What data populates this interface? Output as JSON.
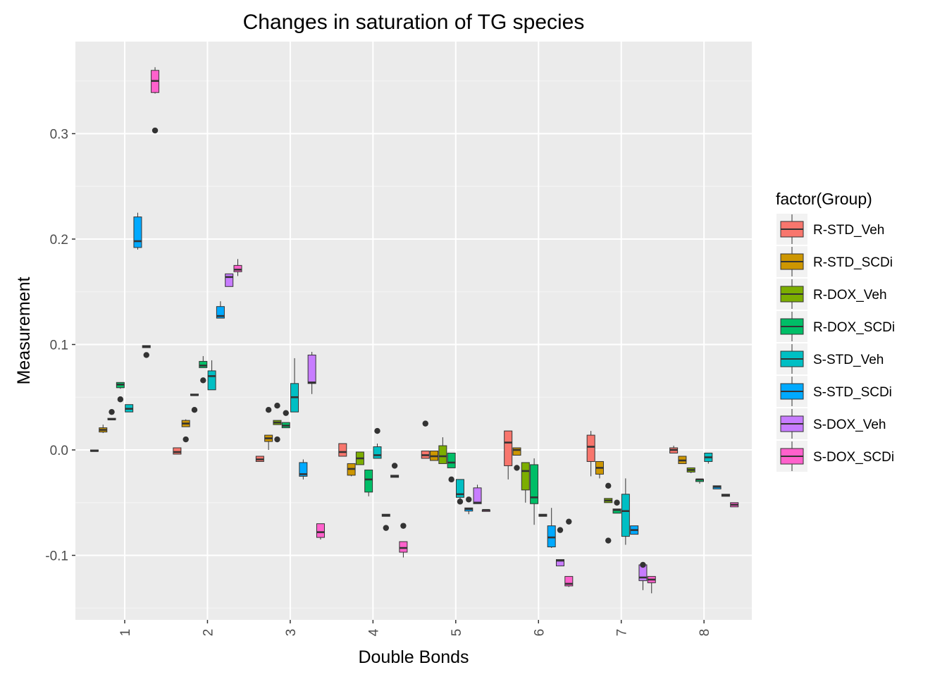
{
  "chart_data": {
    "type": "boxplot",
    "title": "Changes in saturation of TG species",
    "xlabel": "Double Bonds",
    "ylabel": "Measurement",
    "categories": [
      "1",
      "2",
      "3",
      "4",
      "5",
      "6",
      "7",
      "8"
    ],
    "yticks": [
      -0.1,
      0.0,
      0.1,
      0.2,
      0.3
    ],
    "ytick_labels": [
      "-0.1",
      "0.0",
      "0.1",
      "0.2",
      "0.3"
    ],
    "ylim": [
      -0.16,
      0.385
    ],
    "legend_title": "factor(Group)",
    "legend_position": "right",
    "grid": true,
    "series": [
      {
        "name": "R-STD_Veh",
        "color": "#F8766D",
        "boxes": [
          {
            "lo": -0.001,
            "q1": -0.001,
            "med": -0.001,
            "q3": 0.0,
            "hi": 0.0,
            "outliers": []
          },
          {
            "lo": -0.004,
            "q1": -0.004,
            "med": -0.002,
            "q3": 0.002,
            "hi": 0.002,
            "outliers": []
          },
          {
            "lo": -0.011,
            "q1": -0.011,
            "med": -0.009,
            "q3": -0.006,
            "hi": -0.006,
            "outliers": []
          },
          {
            "lo": -0.006,
            "q1": -0.006,
            "med": -0.002,
            "q3": 0.006,
            "hi": 0.006,
            "outliers": []
          },
          {
            "lo": -0.008,
            "q1": -0.008,
            "med": -0.005,
            "q3": -0.001,
            "hi": -0.001,
            "outliers": [
              0.025
            ]
          },
          {
            "lo": -0.028,
            "q1": -0.015,
            "med": 0.007,
            "q3": 0.018,
            "hi": 0.018,
            "outliers": []
          },
          {
            "lo": -0.025,
            "q1": -0.011,
            "med": 0.003,
            "q3": 0.014,
            "hi": 0.018,
            "outliers": []
          },
          {
            "lo": -0.003,
            "q1": -0.003,
            "med": 0.0,
            "q3": 0.002,
            "hi": 0.004,
            "outliers": []
          }
        ]
      },
      {
        "name": "R-STD_SCDi",
        "color": "#CD9600",
        "boxes": [
          {
            "lo": 0.016,
            "q1": 0.017,
            "med": 0.019,
            "q3": 0.021,
            "hi": 0.024,
            "outliers": []
          },
          {
            "lo": 0.022,
            "q1": 0.022,
            "med": 0.025,
            "q3": 0.028,
            "hi": 0.029,
            "outliers": [
              0.01
            ]
          },
          {
            "lo": 0.0,
            "q1": 0.008,
            "med": 0.011,
            "q3": 0.014,
            "hi": 0.014,
            "outliers": [
              0.038
            ]
          },
          {
            "lo": -0.025,
            "q1": -0.024,
            "med": -0.018,
            "q3": -0.013,
            "hi": -0.013,
            "outliers": []
          },
          {
            "lo": -0.01,
            "q1": -0.01,
            "med": -0.006,
            "q3": -0.001,
            "hi": -0.001,
            "outliers": []
          },
          {
            "lo": -0.005,
            "q1": -0.005,
            "med": 0.0,
            "q3": 0.002,
            "hi": 0.002,
            "outliers": [
              -0.017
            ]
          },
          {
            "lo": -0.027,
            "q1": -0.023,
            "med": -0.017,
            "q3": -0.011,
            "hi": -0.011,
            "outliers": []
          },
          {
            "lo": -0.013,
            "q1": -0.013,
            "med": -0.01,
            "q3": -0.006,
            "hi": -0.006,
            "outliers": []
          }
        ]
      },
      {
        "name": "R-DOX_Veh",
        "color": "#7CAE00",
        "boxes": [
          {
            "lo": 0.029,
            "q1": 0.029,
            "med": 0.029,
            "q3": 0.03,
            "hi": 0.03,
            "outliers": [
              0.036
            ]
          },
          {
            "lo": 0.052,
            "q1": 0.052,
            "med": 0.052,
            "q3": 0.053,
            "hi": 0.053,
            "outliers": [
              0.038
            ]
          },
          {
            "lo": 0.024,
            "q1": 0.024,
            "med": 0.026,
            "q3": 0.028,
            "hi": 0.028,
            "outliers": [
              0.042,
              0.01
            ]
          },
          {
            "lo": -0.014,
            "q1": -0.014,
            "med": -0.008,
            "q3": -0.002,
            "hi": -0.002,
            "outliers": []
          },
          {
            "lo": -0.013,
            "q1": -0.013,
            "med": -0.006,
            "q3": 0.004,
            "hi": 0.012,
            "outliers": []
          },
          {
            "lo": -0.05,
            "q1": -0.038,
            "med": -0.02,
            "q3": -0.012,
            "hi": -0.012,
            "outliers": []
          },
          {
            "lo": -0.05,
            "q1": -0.05,
            "med": -0.048,
            "q3": -0.046,
            "hi": -0.046,
            "outliers": [
              -0.034,
              -0.086
            ]
          },
          {
            "lo": -0.022,
            "q1": -0.021,
            "med": -0.019,
            "q3": -0.017,
            "hi": -0.017,
            "outliers": []
          }
        ]
      },
      {
        "name": "R-DOX_SCDi",
        "color": "#00BE67",
        "boxes": [
          {
            "lo": 0.058,
            "q1": 0.059,
            "med": 0.062,
            "q3": 0.064,
            "hi": 0.064,
            "outliers": [
              0.048
            ]
          },
          {
            "lo": 0.078,
            "q1": 0.078,
            "med": 0.08,
            "q3": 0.084,
            "hi": 0.089,
            "outliers": [
              0.066
            ]
          },
          {
            "lo": 0.021,
            "q1": 0.021,
            "med": 0.023,
            "q3": 0.026,
            "hi": 0.026,
            "outliers": [
              0.035
            ]
          },
          {
            "lo": -0.044,
            "q1": -0.04,
            "med": -0.028,
            "q3": -0.019,
            "hi": -0.019,
            "outliers": []
          },
          {
            "lo": -0.017,
            "q1": -0.017,
            "med": -0.012,
            "q3": -0.003,
            "hi": -0.003,
            "outliers": [
              -0.028
            ]
          },
          {
            "lo": -0.071,
            "q1": -0.051,
            "med": -0.045,
            "q3": -0.014,
            "hi": -0.008,
            "outliers": []
          },
          {
            "lo": -0.06,
            "q1": -0.06,
            "med": -0.057,
            "q3": -0.056,
            "hi": -0.056,
            "outliers": [
              -0.05
            ]
          },
          {
            "lo": -0.032,
            "q1": -0.03,
            "med": -0.028,
            "q3": -0.028,
            "hi": -0.028,
            "outliers": []
          }
        ]
      },
      {
        "name": "S-STD_Veh",
        "color": "#00BFC4",
        "boxes": [
          {
            "lo": 0.036,
            "q1": 0.036,
            "med": 0.039,
            "q3": 0.043,
            "hi": 0.043,
            "outliers": []
          },
          {
            "lo": 0.057,
            "q1": 0.057,
            "med": 0.07,
            "q3": 0.075,
            "hi": 0.085,
            "outliers": []
          },
          {
            "lo": 0.036,
            "q1": 0.036,
            "med": 0.05,
            "q3": 0.063,
            "hi": 0.087,
            "outliers": []
          },
          {
            "lo": -0.008,
            "q1": -0.008,
            "med": -0.005,
            "q3": 0.003,
            "hi": 0.006,
            "outliers": [
              0.018
            ]
          },
          {
            "lo": -0.048,
            "q1": -0.045,
            "med": -0.042,
            "q3": -0.028,
            "hi": -0.028,
            "outliers": [
              -0.049
            ]
          },
          {
            "lo": -0.063,
            "q1": -0.063,
            "med": -0.062,
            "q3": -0.061,
            "hi": -0.061,
            "outliers": []
          },
          {
            "lo": -0.09,
            "q1": -0.082,
            "med": -0.058,
            "q3": -0.042,
            "hi": -0.027,
            "outliers": []
          },
          {
            "lo": -0.013,
            "q1": -0.011,
            "med": -0.007,
            "q3": -0.003,
            "hi": -0.003,
            "outliers": []
          }
        ]
      },
      {
        "name": "S-STD_SCDi",
        "color": "#00A9FF",
        "boxes": [
          {
            "lo": 0.19,
            "q1": 0.192,
            "med": 0.198,
            "q3": 0.221,
            "hi": 0.225,
            "outliers": []
          },
          {
            "lo": 0.125,
            "q1": 0.125,
            "med": 0.127,
            "q3": 0.136,
            "hi": 0.141,
            "outliers": []
          },
          {
            "lo": -0.028,
            "q1": -0.025,
            "med": -0.023,
            "q3": -0.012,
            "hi": -0.009,
            "outliers": []
          },
          {
            "lo": -0.063,
            "q1": -0.063,
            "med": -0.062,
            "q3": -0.061,
            "hi": -0.061,
            "outliers": [
              -0.074
            ]
          },
          {
            "lo": -0.061,
            "q1": -0.058,
            "med": -0.056,
            "q3": -0.055,
            "hi": -0.055,
            "outliers": [
              -0.047
            ]
          },
          {
            "lo": -0.093,
            "q1": -0.092,
            "med": -0.083,
            "q3": -0.072,
            "hi": -0.055,
            "outliers": []
          },
          {
            "lo": -0.08,
            "q1": -0.08,
            "med": -0.076,
            "q3": -0.072,
            "hi": -0.072,
            "outliers": []
          },
          {
            "lo": -0.037,
            "q1": -0.037,
            "med": -0.035,
            "q3": -0.034,
            "hi": -0.034,
            "outliers": []
          }
        ]
      },
      {
        "name": "S-DOX_Veh",
        "color": "#C77CFF",
        "boxes": [
          {
            "lo": 0.097,
            "q1": 0.097,
            "med": 0.098,
            "q3": 0.099,
            "hi": 0.099,
            "outliers": [
              0.09
            ]
          },
          {
            "lo": 0.155,
            "q1": 0.155,
            "med": 0.164,
            "q3": 0.167,
            "hi": 0.167,
            "outliers": []
          },
          {
            "lo": 0.053,
            "q1": 0.063,
            "med": 0.064,
            "q3": 0.09,
            "hi": 0.093,
            "outliers": []
          },
          {
            "lo": -0.026,
            "q1": -0.026,
            "med": -0.025,
            "q3": -0.024,
            "hi": -0.024,
            "outliers": [
              -0.015
            ]
          },
          {
            "lo": -0.051,
            "q1": -0.051,
            "med": -0.05,
            "q3": -0.036,
            "hi": -0.033,
            "outliers": []
          },
          {
            "lo": -0.11,
            "q1": -0.11,
            "med": -0.105,
            "q3": -0.104,
            "hi": -0.104,
            "outliers": [
              -0.076
            ]
          },
          {
            "lo": -0.133,
            "q1": -0.124,
            "med": -0.121,
            "q3": -0.109,
            "hi": -0.109,
            "outliers": [
              -0.109
            ]
          },
          {
            "lo": -0.044,
            "q1": -0.044,
            "med": -0.043,
            "q3": -0.042,
            "hi": -0.042,
            "outliers": []
          }
        ]
      },
      {
        "name": "S-DOX_SCDi",
        "color": "#FF61CC",
        "boxes": [
          {
            "lo": 0.338,
            "q1": 0.339,
            "med": 0.35,
            "q3": 0.36,
            "hi": 0.363,
            "outliers": [
              0.303
            ]
          },
          {
            "lo": 0.165,
            "q1": 0.169,
            "med": 0.171,
            "q3": 0.175,
            "hi": 0.181,
            "outliers": []
          },
          {
            "lo": -0.085,
            "q1": -0.083,
            "med": -0.078,
            "q3": -0.07,
            "hi": -0.07,
            "outliers": []
          },
          {
            "lo": -0.102,
            "q1": -0.097,
            "med": -0.093,
            "q3": -0.087,
            "hi": -0.087,
            "outliers": [
              -0.072
            ]
          },
          {
            "lo": -0.058,
            "q1": -0.058,
            "med": -0.057,
            "q3": -0.057,
            "hi": -0.057,
            "outliers": []
          },
          {
            "lo": -0.13,
            "q1": -0.129,
            "med": -0.127,
            "q3": -0.12,
            "hi": -0.12,
            "outliers": [
              -0.068
            ]
          },
          {
            "lo": -0.136,
            "q1": -0.126,
            "med": -0.123,
            "q3": -0.12,
            "hi": -0.12,
            "outliers": []
          },
          {
            "lo": -0.054,
            "q1": -0.054,
            "med": -0.052,
            "q3": -0.05,
            "hi": -0.05,
            "outliers": []
          }
        ]
      }
    ]
  }
}
